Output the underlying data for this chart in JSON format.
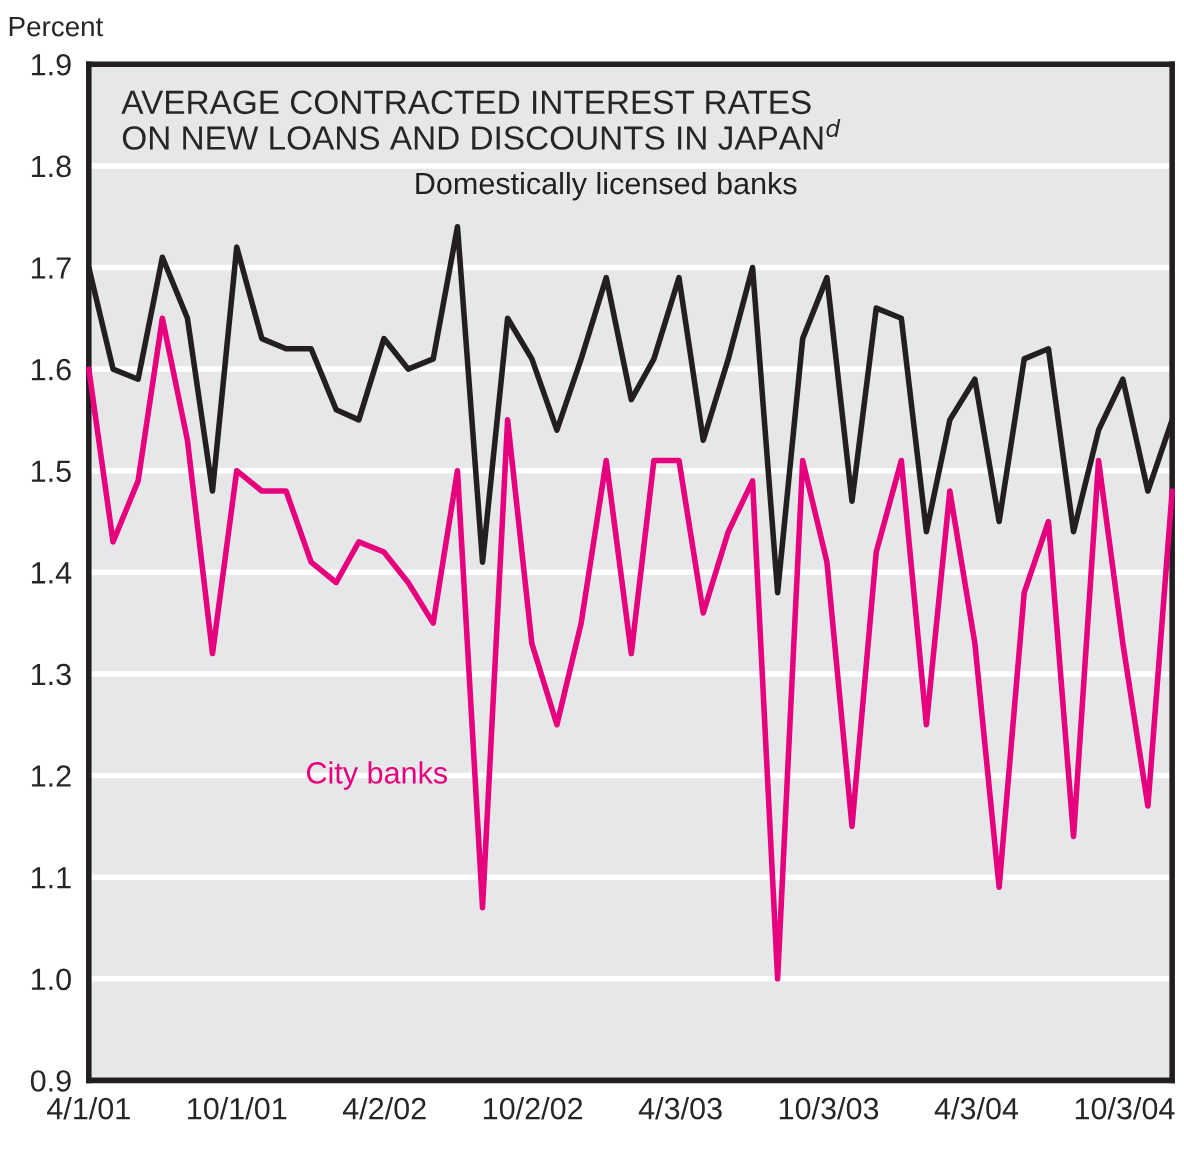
{
  "chart_data": {
    "type": "line",
    "title": "AVERAGE CONTRACTED INTEREST RATES\nON NEW LOANS AND DISCOUNTS IN JAPAN$^{d}$",
    "ylabel": "Percent",
    "x": [
      "2001-04-01",
      "2001-05-01",
      "2001-06-01",
      "2001-07-01",
      "2001-08-01",
      "2001-09-01",
      "2001-10-01",
      "2001-11-01",
      "2001-12-01",
      "2002-01-01",
      "2002-02-01",
      "2002-03-01",
      "2002-04-01",
      "2002-05-01",
      "2002-06-01",
      "2002-07-01",
      "2002-08-01",
      "2002-09-01",
      "2002-10-01",
      "2002-11-01",
      "2002-12-01",
      "2003-01-01",
      "2003-02-01",
      "2003-03-01",
      "2003-04-01",
      "2003-05-01",
      "2003-06-01",
      "2003-07-01",
      "2003-08-01",
      "2003-09-01",
      "2003-10-01",
      "2003-11-01",
      "2003-12-01",
      "2004-01-01",
      "2004-02-01",
      "2004-03-01",
      "2004-04-01",
      "2004-05-01",
      "2004-06-01",
      "2004-07-01",
      "2004-08-01",
      "2004-09-01",
      "2004-10-01",
      "2004-11-01",
      "2004-12-01"
    ],
    "series": [
      {
        "name": "Domestically licensed banks",
        "color": "#231f20",
        "values": [
          1.7,
          1.6,
          1.59,
          1.71,
          1.65,
          1.48,
          1.72,
          1.63,
          1.62,
          1.62,
          1.56,
          1.55,
          1.63,
          1.6,
          1.61,
          1.74,
          1.41,
          1.65,
          1.61,
          1.54,
          1.61,
          1.69,
          1.57,
          1.61,
          1.69,
          1.53,
          1.61,
          1.7,
          1.38,
          1.63,
          1.69,
          1.47,
          1.66,
          1.65,
          1.44,
          1.55,
          1.59,
          1.45,
          1.61,
          1.62,
          1.44,
          1.54,
          1.59,
          1.48,
          1.55
        ]
      },
      {
        "name": "City banks",
        "color": "#e6007e",
        "values": [
          1.6,
          1.43,
          1.49,
          1.65,
          1.53,
          1.32,
          1.5,
          1.48,
          1.48,
          1.41,
          1.39,
          1.43,
          1.42,
          1.39,
          1.35,
          1.5,
          1.07,
          1.55,
          1.33,
          1.25,
          1.35,
          1.51,
          1.32,
          1.51,
          1.51,
          1.36,
          1.44,
          1.49,
          1.0,
          1.51,
          1.41,
          1.15,
          1.42,
          1.51,
          1.25,
          1.48,
          1.33,
          1.09,
          1.38,
          1.45,
          1.14,
          1.51,
          1.33,
          1.17,
          1.48
        ]
      }
    ],
    "xlim": [
      "2001-04-01",
      "2004-12-01"
    ],
    "xticks": [
      {
        "value": "2001-04-01",
        "label": "4/1/01"
      },
      {
        "value": "2001-10-01",
        "label": "10/1/01"
      },
      {
        "value": "2002-04-02",
        "label": "4/2/02"
      },
      {
        "value": "2002-10-02",
        "label": "10/2/02"
      },
      {
        "value": "2003-04-03",
        "label": "4/3/03"
      },
      {
        "value": "2003-10-03",
        "label": "10/3/03"
      },
      {
        "value": "2004-04-03",
        "label": "4/3/04"
      },
      {
        "value": "2004-10-03",
        "label": "10/3/04"
      }
    ],
    "ylim": [
      0.9,
      1.9
    ],
    "yticks": [
      0.9,
      {
        "value": 1.0,
        "label": "1.0"
      },
      1.1,
      1.2,
      1.3,
      1.4,
      1.5,
      1.6,
      1.7,
      1.8,
      1.9
    ],
    "grid": "y",
    "legend": false,
    "marker": "none",
    "line_style": "solid"
  }
}
